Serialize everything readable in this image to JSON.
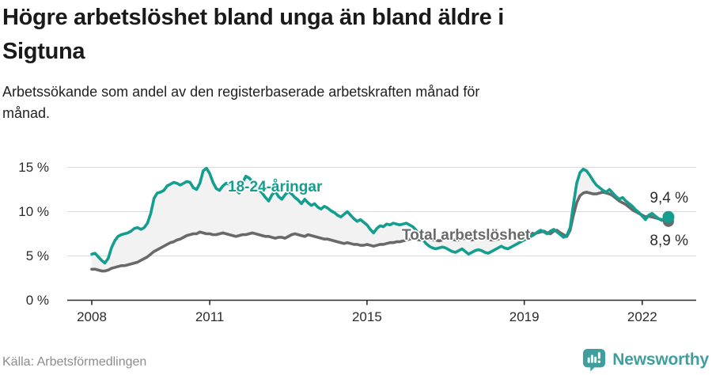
{
  "header": {
    "title": "Högre arbetslöshet bland unga än bland äldre i Sigtuna",
    "title_lines": [
      "Högre arbetslöshet bland unga än bland äldre i",
      "Sigtuna"
    ],
    "subtitle": "Arbetssökande som andel av den registerbaserade arbetskraften månad för månad.",
    "subtitle_lines": [
      "Arbetssökande som andel av den registerbaserade arbetskraften månad för",
      "månad."
    ]
  },
  "chart_data": {
    "type": "line",
    "title": "Högre arbetslöshet bland unga än bland äldre i Sigtuna",
    "subtitle": "Arbetssökande som andel av den registerbaserade arbetskraften månad för månad.",
    "unit": "%",
    "frequency": "monthly",
    "x_start": "2008-01",
    "x_end": "2022-09",
    "ylim": [
      0,
      16
    ],
    "grid": "horizontal",
    "legend": "inline-labels",
    "band_fill_between_series": true,
    "y_axis": {
      "ticks": [
        {
          "label": "0 %",
          "value": 0
        },
        {
          "label": "5 %",
          "value": 5
        },
        {
          "label": "10 %",
          "value": 10
        },
        {
          "label": "15 %",
          "value": 15
        }
      ]
    },
    "x_axis": {
      "ticks": [
        {
          "label": "2008",
          "year": 2008
        },
        {
          "label": "2011",
          "year": 2011
        },
        {
          "label": "2015",
          "year": 2015
        },
        {
          "label": "2019",
          "year": 2019
        },
        {
          "label": "2022",
          "year": 2022
        }
      ]
    },
    "series": [
      {
        "label": "18-24-åringar",
        "color": "#149e90",
        "end_label": "9,4 %",
        "end_value": 9.4,
        "values": [
          5.2,
          5.3,
          4.9,
          4.5,
          4.2,
          4.7,
          5.9,
          6.7,
          7.2,
          7.4,
          7.5,
          7.6,
          7.8,
          8.1,
          8.2,
          8.0,
          8.2,
          8.7,
          9.8,
          11.5,
          12.1,
          12.2,
          12.4,
          12.9,
          13.1,
          13.3,
          13.2,
          13.0,
          13.2,
          13.4,
          13.3,
          12.7,
          12.5,
          13.2,
          14.6,
          14.9,
          14.3,
          13.3,
          12.6,
          12.4,
          12.9,
          13.2,
          13.1,
          12.8,
          12.5,
          12.1,
          13.2,
          14.0,
          13.8,
          13.4,
          12.9,
          12.5,
          12.1,
          11.6,
          11.2,
          11.9,
          12.3,
          11.7,
          11.4,
          11.9,
          12.3,
          12.0,
          11.6,
          11.3,
          10.9,
          11.4,
          11.0,
          10.7,
          10.9,
          10.5,
          10.3,
          10.6,
          10.4,
          10.1,
          9.9,
          9.6,
          9.4,
          9.7,
          10.0,
          9.6,
          9.2,
          8.9,
          9.1,
          8.8,
          8.5,
          8.0,
          7.6,
          8.1,
          8.4,
          8.3,
          8.6,
          8.5,
          8.7,
          8.6,
          8.5,
          8.6,
          8.7,
          8.5,
          8.3,
          7.9,
          7.4,
          6.9,
          6.4,
          6.1,
          5.9,
          5.8,
          5.9,
          6.0,
          5.9,
          5.7,
          5.5,
          5.4,
          5.6,
          5.8,
          5.5,
          5.2,
          5.4,
          5.6,
          5.7,
          5.6,
          5.4,
          5.3,
          5.5,
          5.7,
          5.9,
          6.1,
          5.9,
          5.8,
          6.0,
          6.2,
          6.4,
          6.6,
          6.8,
          7.0,
          7.2,
          7.4,
          7.7,
          7.9,
          7.7,
          7.5,
          7.8,
          8.0,
          7.7,
          7.4,
          7.1,
          7.3,
          8.2,
          10.8,
          13.2,
          14.4,
          14.8,
          14.6,
          14.1,
          13.5,
          13.0,
          12.7,
          12.4,
          12.2,
          12.5,
          12.1,
          11.7,
          11.4,
          11.6,
          11.2,
          10.9,
          10.6,
          10.2,
          9.9,
          9.5,
          9.1,
          9.6,
          9.8,
          9.5,
          9.2,
          9.0,
          9.2,
          9.4
        ]
      },
      {
        "label": "Total arbetslöshet",
        "color": "#696969",
        "end_label": "8,9 %",
        "end_value": 8.9,
        "values": [
          3.5,
          3.5,
          3.4,
          3.3,
          3.3,
          3.4,
          3.6,
          3.7,
          3.8,
          3.9,
          3.9,
          4.0,
          4.1,
          4.2,
          4.3,
          4.5,
          4.7,
          4.9,
          5.2,
          5.5,
          5.7,
          5.9,
          6.1,
          6.3,
          6.5,
          6.6,
          6.8,
          6.9,
          7.1,
          7.3,
          7.4,
          7.5,
          7.5,
          7.7,
          7.6,
          7.5,
          7.5,
          7.4,
          7.4,
          7.5,
          7.6,
          7.5,
          7.4,
          7.3,
          7.2,
          7.3,
          7.4,
          7.4,
          7.5,
          7.6,
          7.5,
          7.4,
          7.3,
          7.2,
          7.2,
          7.1,
          7.0,
          7.1,
          7.1,
          7.0,
          7.2,
          7.4,
          7.5,
          7.4,
          7.3,
          7.2,
          7.4,
          7.3,
          7.2,
          7.1,
          7.0,
          6.9,
          6.9,
          6.8,
          6.7,
          6.6,
          6.5,
          6.4,
          6.5,
          6.4,
          6.3,
          6.3,
          6.2,
          6.2,
          6.3,
          6.2,
          6.1,
          6.2,
          6.3,
          6.3,
          6.4,
          6.5,
          6.5,
          6.6,
          6.6,
          6.7,
          6.8,
          6.9,
          7.0,
          6.9,
          6.8,
          6.8,
          6.9,
          6.9,
          6.8,
          6.8,
          6.7,
          6.8,
          6.9,
          7.0,
          6.9,
          6.8,
          6.8,
          6.9,
          7.0,
          6.9,
          6.8,
          6.9,
          7.0,
          7.0,
          7.0,
          6.9,
          6.8,
          6.8,
          6.9,
          7.0,
          7.1,
          7.0,
          7.0,
          7.1,
          7.2,
          7.3,
          7.4,
          7.5,
          7.6,
          7.5,
          7.6,
          7.7,
          7.8,
          7.6,
          7.5,
          7.8,
          7.9,
          7.6,
          7.4,
          7.2,
          7.9,
          9.6,
          11.0,
          11.8,
          12.1,
          12.2,
          12.1,
          12.0,
          12.0,
          12.1,
          12.2,
          12.1,
          12.0,
          11.8,
          11.5,
          11.2,
          11.0,
          10.8,
          10.5,
          10.2,
          10.0,
          9.8,
          9.6,
          9.4,
          9.5,
          9.4,
          9.3,
          9.2,
          9.1,
          9.0,
          8.9
        ]
      }
    ]
  },
  "footer": {
    "source": "Källa: Arbetsförmedlingen",
    "brand": "Newsworthy",
    "brand_icon": "bar-chart-speech-bubble"
  },
  "colors": {
    "accent_teal": "#149e90",
    "total_gray": "#696969",
    "grid": "#d9d9d9",
    "axis": "#2b2b2b",
    "band_fill": "#f2f2f2",
    "brand_teal": "#3f9f9f",
    "source_gray": "#8c8c8c"
  }
}
